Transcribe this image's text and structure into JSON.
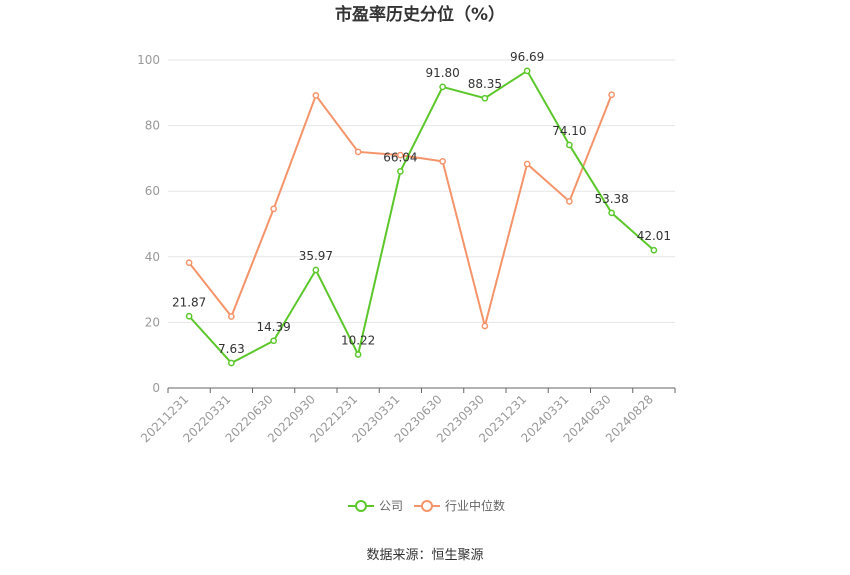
{
  "chart_data": {
    "type": "line",
    "title": "市盈率历史分位（%）",
    "xlabel": "",
    "ylabel": "",
    "categories": [
      "20211231",
      "20220331",
      "20220630",
      "20220930",
      "20221231",
      "20230331",
      "20230630",
      "20230930",
      "20231231",
      "20240331",
      "20240630",
      "20240828"
    ],
    "ylim": [
      0,
      100
    ],
    "yticks": [
      "0",
      "20",
      "40",
      "60",
      "80",
      "100"
    ],
    "grid": true,
    "legend_position": "bottom",
    "series": [
      {
        "name": "公司",
        "color": "#5cc72b",
        "values": [
          21.87,
          7.63,
          14.39,
          35.97,
          10.22,
          66.04,
          91.8,
          88.35,
          96.69,
          74.1,
          53.38,
          42.01
        ],
        "labels": [
          "21.87",
          "7.63",
          "14.39",
          "35.97",
          "10.22",
          "66.04",
          "91.80",
          "88.35",
          "96.69",
          "74.10",
          "53.38",
          "42.01"
        ]
      },
      {
        "name": "行业中位数",
        "color": "#f5946a",
        "values": [
          38.2,
          21.8,
          54.6,
          89.2,
          72.0,
          71.0,
          69.1,
          18.9,
          68.3,
          56.9,
          89.4,
          null
        ]
      }
    ],
    "source": "数据来源：恒生聚源"
  }
}
